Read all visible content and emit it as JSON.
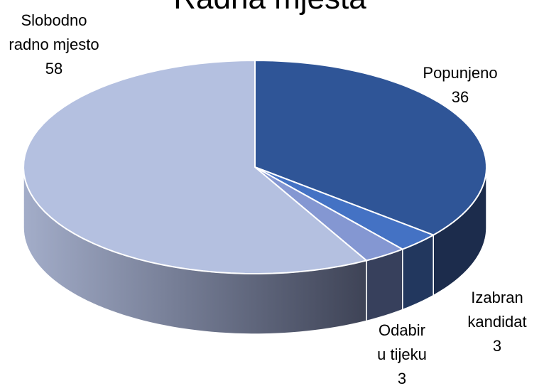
{
  "chart_data": {
    "type": "pie",
    "title": "Radna mjesta",
    "categories": [
      "Popunjeno",
      "Izabran kandidat",
      "Odabir u tijeku",
      "Slobodno radno mjesto"
    ],
    "values": [
      36,
      3,
      3,
      58
    ],
    "colors": [
      "#2f5597",
      "#4472c4",
      "#8497d2",
      "#b4c0e0"
    ],
    "side_colors": [
      "#1c2c4c",
      "#22375e",
      "#37405c",
      "#9aa4c2"
    ]
  }
}
